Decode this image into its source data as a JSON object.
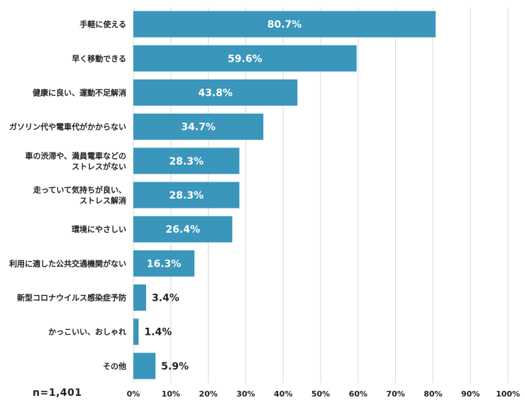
{
  "chart_data": {
    "type": "bar",
    "orientation": "horizontal",
    "categories": [
      [
        "手軽に使える"
      ],
      [
        "早く移動できる"
      ],
      [
        "健康に良い、運動不足解消"
      ],
      [
        "ガソリン代や電車代がかからない"
      ],
      [
        "車の渋滞や、満員電車などの",
        "ストレスがない"
      ],
      [
        "走っていて気持ちが良い、",
        "ストレス解消"
      ],
      [
        "環境にやさしい"
      ],
      [
        "利用に適した公共交通機関がない"
      ],
      [
        "新型コロナウイルス感染症予防"
      ],
      [
        "かっこいい、おしゃれ"
      ],
      [
        "その他"
      ]
    ],
    "values": [
      80.7,
      59.6,
      43.8,
      34.7,
      28.3,
      28.3,
      26.4,
      16.3,
      3.4,
      1.4,
      5.9
    ],
    "value_labels": [
      "80.7%",
      "59.6%",
      "43.8%",
      "34.7%",
      "28.3%",
      "28.3%",
      "26.4%",
      "16.3%",
      "3.4%",
      "1.4%",
      "5.9%"
    ],
    "xlim": [
      0,
      100
    ],
    "x_ticks": [
      "0%",
      "10%",
      "20%",
      "30%",
      "40%",
      "50%",
      "60%",
      "70%",
      "80%",
      "90%",
      "100%"
    ],
    "grid": true,
    "bar_color": "#3a96bb",
    "grid_color": "#d9d9d9"
  },
  "note": "n=1,401"
}
